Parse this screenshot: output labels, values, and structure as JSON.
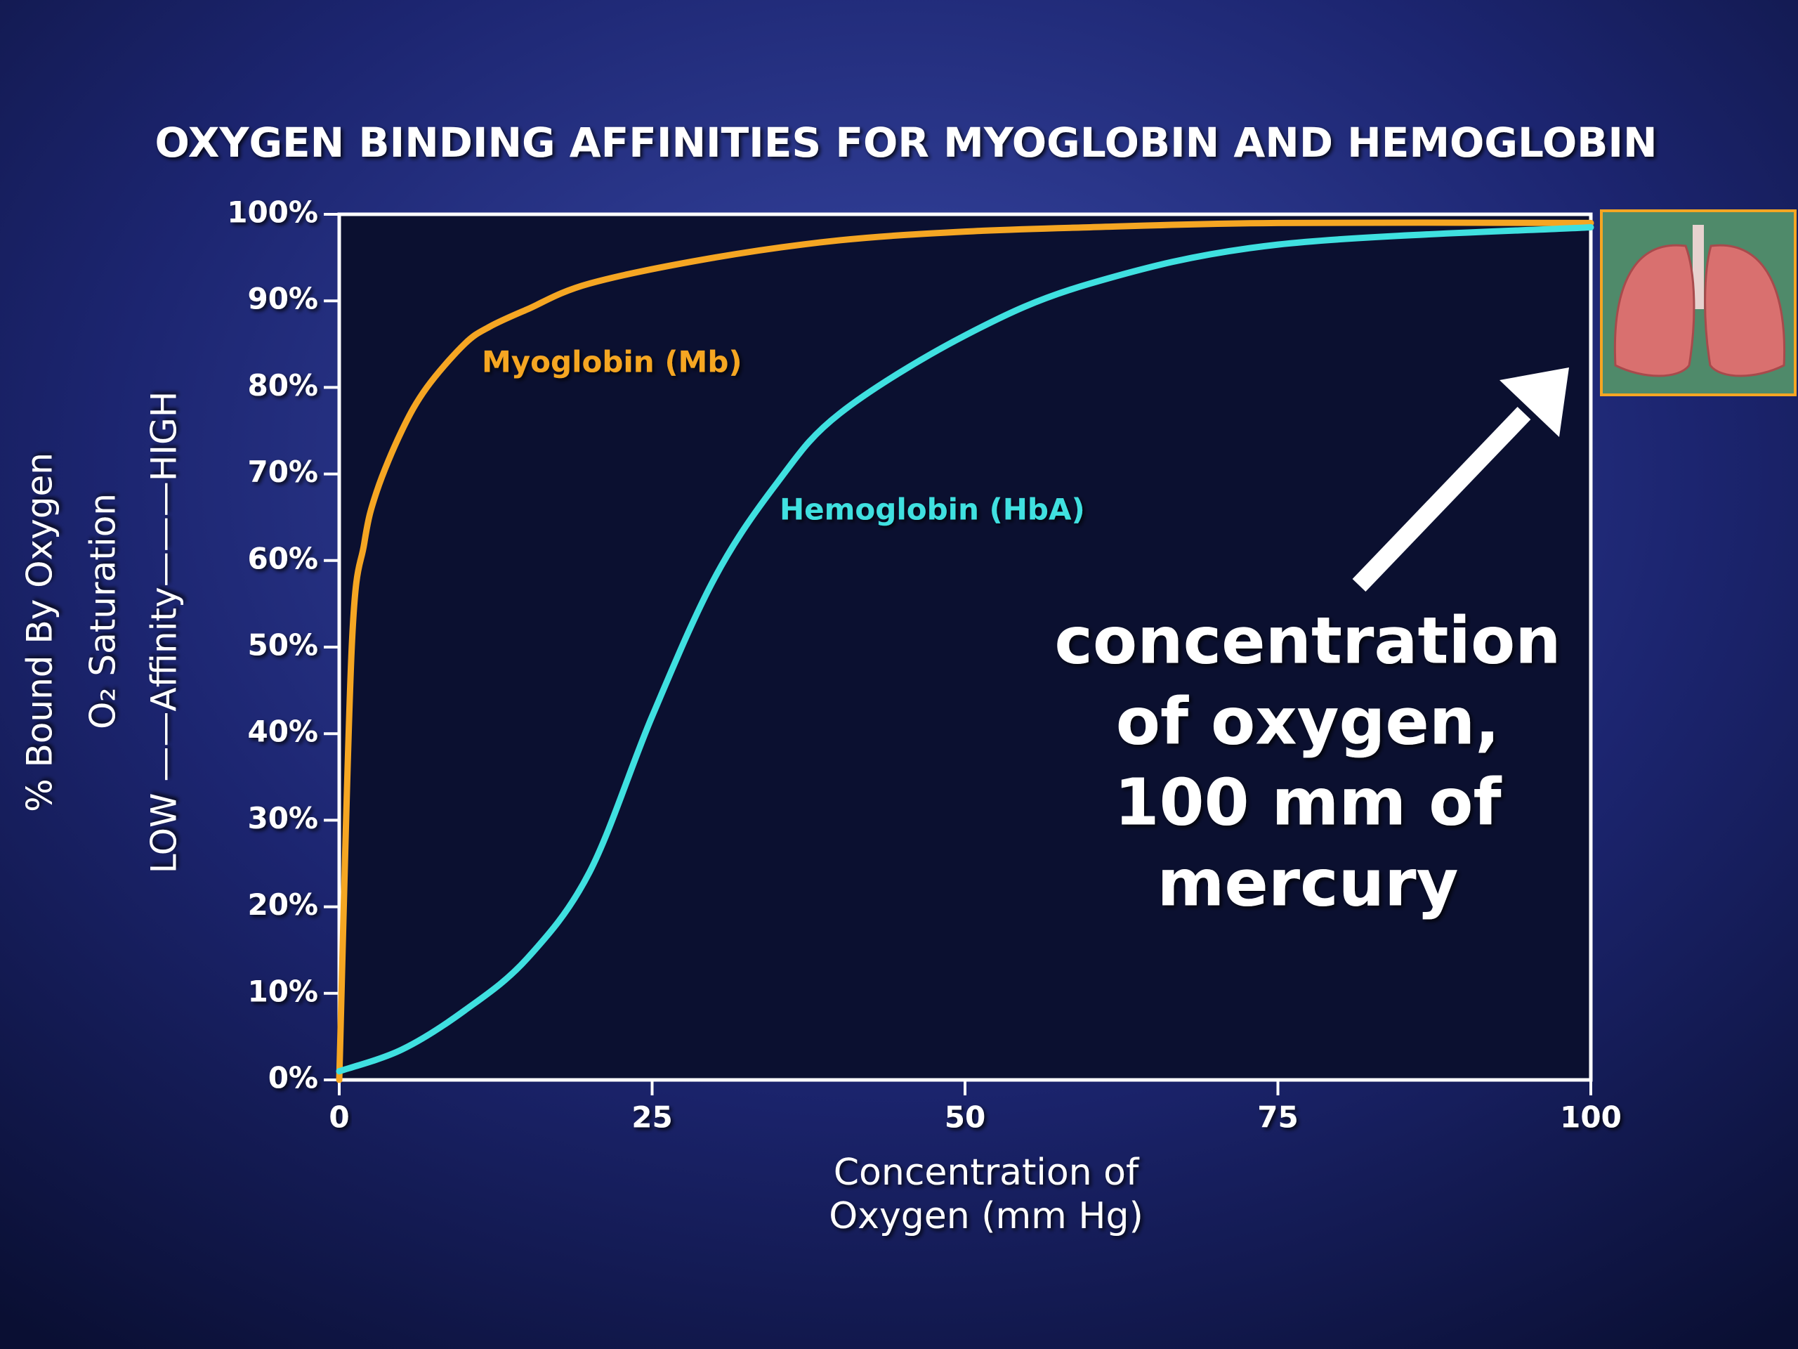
{
  "chart_data": {
    "type": "line",
    "title": "OXYGEN BINDING AFFINITIES FOR MYOGLOBIN AND HEMOGLOBIN",
    "x_label": [
      "Concentration of",
      "Oxygen (mm Hg)"
    ],
    "y_label": [
      "% Bound By Oxygen",
      "O₂ Saturation",
      "LOW ——Affinity———HIGH"
    ],
    "annotation": [
      "concentration",
      "of oxygen,",
      "100 mm of",
      "mercury"
    ],
    "xlim": [
      0,
      100
    ],
    "xticks": [
      0,
      25,
      50,
      75,
      100
    ],
    "ylim": [
      0,
      100
    ],
    "yticks": [
      {
        "value": 0,
        "label": "0%"
      },
      {
        "value": 10,
        "label": "10%"
      },
      {
        "value": 20,
        "label": "20%"
      },
      {
        "value": 30,
        "label": "30%"
      },
      {
        "value": 40,
        "label": "40%"
      },
      {
        "value": 50,
        "label": "50%"
      },
      {
        "value": 60,
        "label": "60%"
      },
      {
        "value": 70,
        "label": "70%"
      },
      {
        "value": 80,
        "label": "80%"
      },
      {
        "value": 90,
        "label": "90%"
      },
      {
        "value": 100,
        "label": "100%"
      }
    ],
    "series": [
      {
        "name": "Myoglobin (Mb)",
        "color": "#f5a623",
        "x": [
          0,
          1,
          2,
          3,
          5,
          7,
          10,
          12,
          15,
          20,
          30,
          40,
          50,
          60,
          75,
          100
        ],
        "values": [
          0,
          50,
          62,
          68,
          75,
          80,
          85,
          87,
          89,
          92,
          95,
          97,
          98,
          98.5,
          99,
          99
        ]
      },
      {
        "name": "Hemoglobin (HbA)",
        "color": "#3fe0e0",
        "x": [
          0,
          5,
          10,
          15,
          20,
          25,
          30,
          35,
          40,
          50,
          60,
          75,
          100
        ],
        "values": [
          1,
          3.5,
          8,
          14,
          24,
          42,
          58,
          69,
          77,
          86,
          92,
          96.5,
          98.5
        ]
      }
    ]
  }
}
